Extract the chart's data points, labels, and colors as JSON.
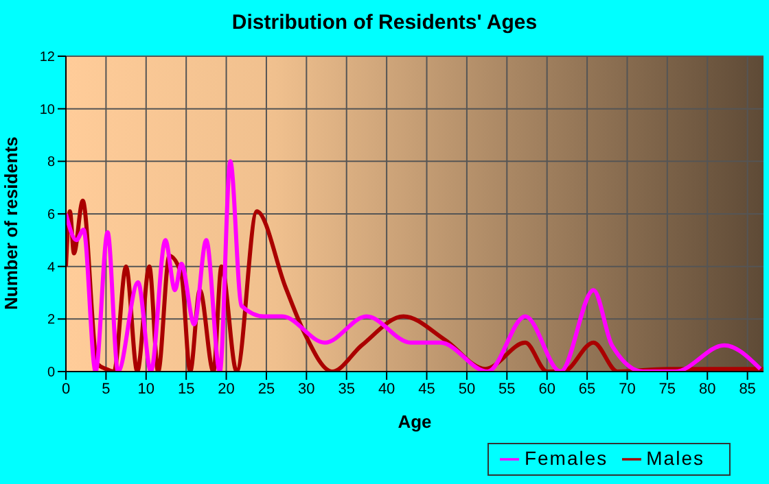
{
  "chart_data": {
    "type": "line",
    "title": "Distribution of Residents' Ages",
    "xlabel": "Age",
    "ylabel": "Number of residents",
    "xlim": [
      0,
      87
    ],
    "xticks": [
      0,
      5,
      10,
      15,
      20,
      25,
      30,
      35,
      40,
      45,
      50,
      55,
      60,
      65,
      70,
      75,
      80,
      85
    ],
    "ylim": [
      0,
      12
    ],
    "yticks": [
      0,
      2,
      4,
      6,
      8,
      10,
      12
    ],
    "grid": true,
    "legend": "bottom right",
    "marker": "none",
    "line_style": "solid",
    "series": [
      {
        "name": "Males",
        "color": "#aa0000",
        "x": [
          0,
          0.5,
          1,
          2.1,
          3.9,
          5,
          6,
          7.5,
          8.9,
          10.4,
          11.5,
          12.9,
          14.4,
          15.5,
          16.7,
          18.4,
          19.4,
          21.3,
          23.8,
          27.4,
          29.7,
          33.2,
          36.9,
          42.1,
          47.3,
          52.3,
          57.3,
          60,
          62,
          65.8,
          68.8,
          75,
          87
        ],
        "values": [
          4,
          6.1,
          4.5,
          6.5,
          0.3,
          0.1,
          0,
          4,
          0,
          4,
          0,
          4.4,
          3.7,
          0,
          3.1,
          0,
          4,
          0,
          6.1,
          3.2,
          1.5,
          0,
          1,
          2.1,
          1.2,
          0.1,
          1.1,
          0,
          0,
          1.1,
          0,
          0.1,
          0.1
        ]
      },
      {
        "name": "Females",
        "color": "#ff00ff",
        "x": [
          0,
          1.3,
          2.2,
          3.7,
          5.2,
          6.5,
          9,
          10.6,
          12.4,
          13.6,
          14.4,
          16,
          17.5,
          19.2,
          20.5,
          21.9,
          24.7,
          27,
          32.3,
          37.5,
          43,
          46.7,
          52.6,
          57.3,
          61.7,
          65.8,
          68.1,
          72,
          76,
          82.1,
          86.6
        ],
        "values": [
          6,
          5,
          5.4,
          0,
          5.3,
          0,
          3.4,
          0,
          5,
          3.1,
          4.1,
          1.8,
          5,
          0,
          8,
          2.5,
          2.1,
          2.1,
          1.1,
          2.1,
          1.1,
          1.1,
          0,
          2.1,
          0,
          3.1,
          1,
          0,
          0,
          1,
          0.1
        ]
      }
    ]
  }
}
